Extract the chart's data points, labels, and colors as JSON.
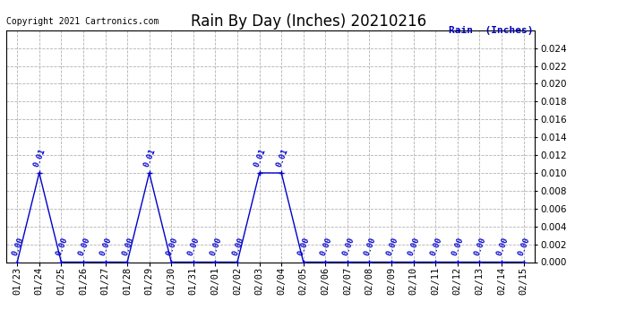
{
  "title": "Rain By Day (Inches) 20210216",
  "copyright_text": "Copyright 2021 Cartronics.com",
  "legend_label": "Rain  (Inches)",
  "dates": [
    "01/23",
    "01/24",
    "01/25",
    "01/26",
    "01/27",
    "01/28",
    "01/29",
    "01/30",
    "01/31",
    "02/01",
    "02/02",
    "02/03",
    "02/04",
    "02/05",
    "02/06",
    "02/07",
    "02/08",
    "02/09",
    "02/10",
    "02/11",
    "02/12",
    "02/13",
    "02/14",
    "02/15"
  ],
  "values": [
    0.0,
    0.01,
    0.0,
    0.0,
    0.0,
    0.0,
    0.01,
    0.0,
    0.0,
    0.0,
    0.0,
    0.01,
    0.01,
    0.0,
    0.0,
    0.0,
    0.0,
    0.0,
    0.0,
    0.0,
    0.0,
    0.0,
    0.0,
    0.0
  ],
  "ylim": [
    0.0,
    0.026
  ],
  "yticks": [
    0.0,
    0.002,
    0.004,
    0.006,
    0.008,
    0.01,
    0.012,
    0.014,
    0.016,
    0.018,
    0.02,
    0.022,
    0.024
  ],
  "line_color": "#0000cc",
  "marker_color": "#0000cc",
  "label_color": "#0000cc",
  "legend_color": "#0000bb",
  "title_color": "#000000",
  "bg_color": "#ffffff",
  "grid_color": "#aaaaaa",
  "title_fontsize": 12,
  "tick_fontsize": 7.5,
  "annotation_fontsize": 6.5,
  "copyright_fontsize": 7
}
